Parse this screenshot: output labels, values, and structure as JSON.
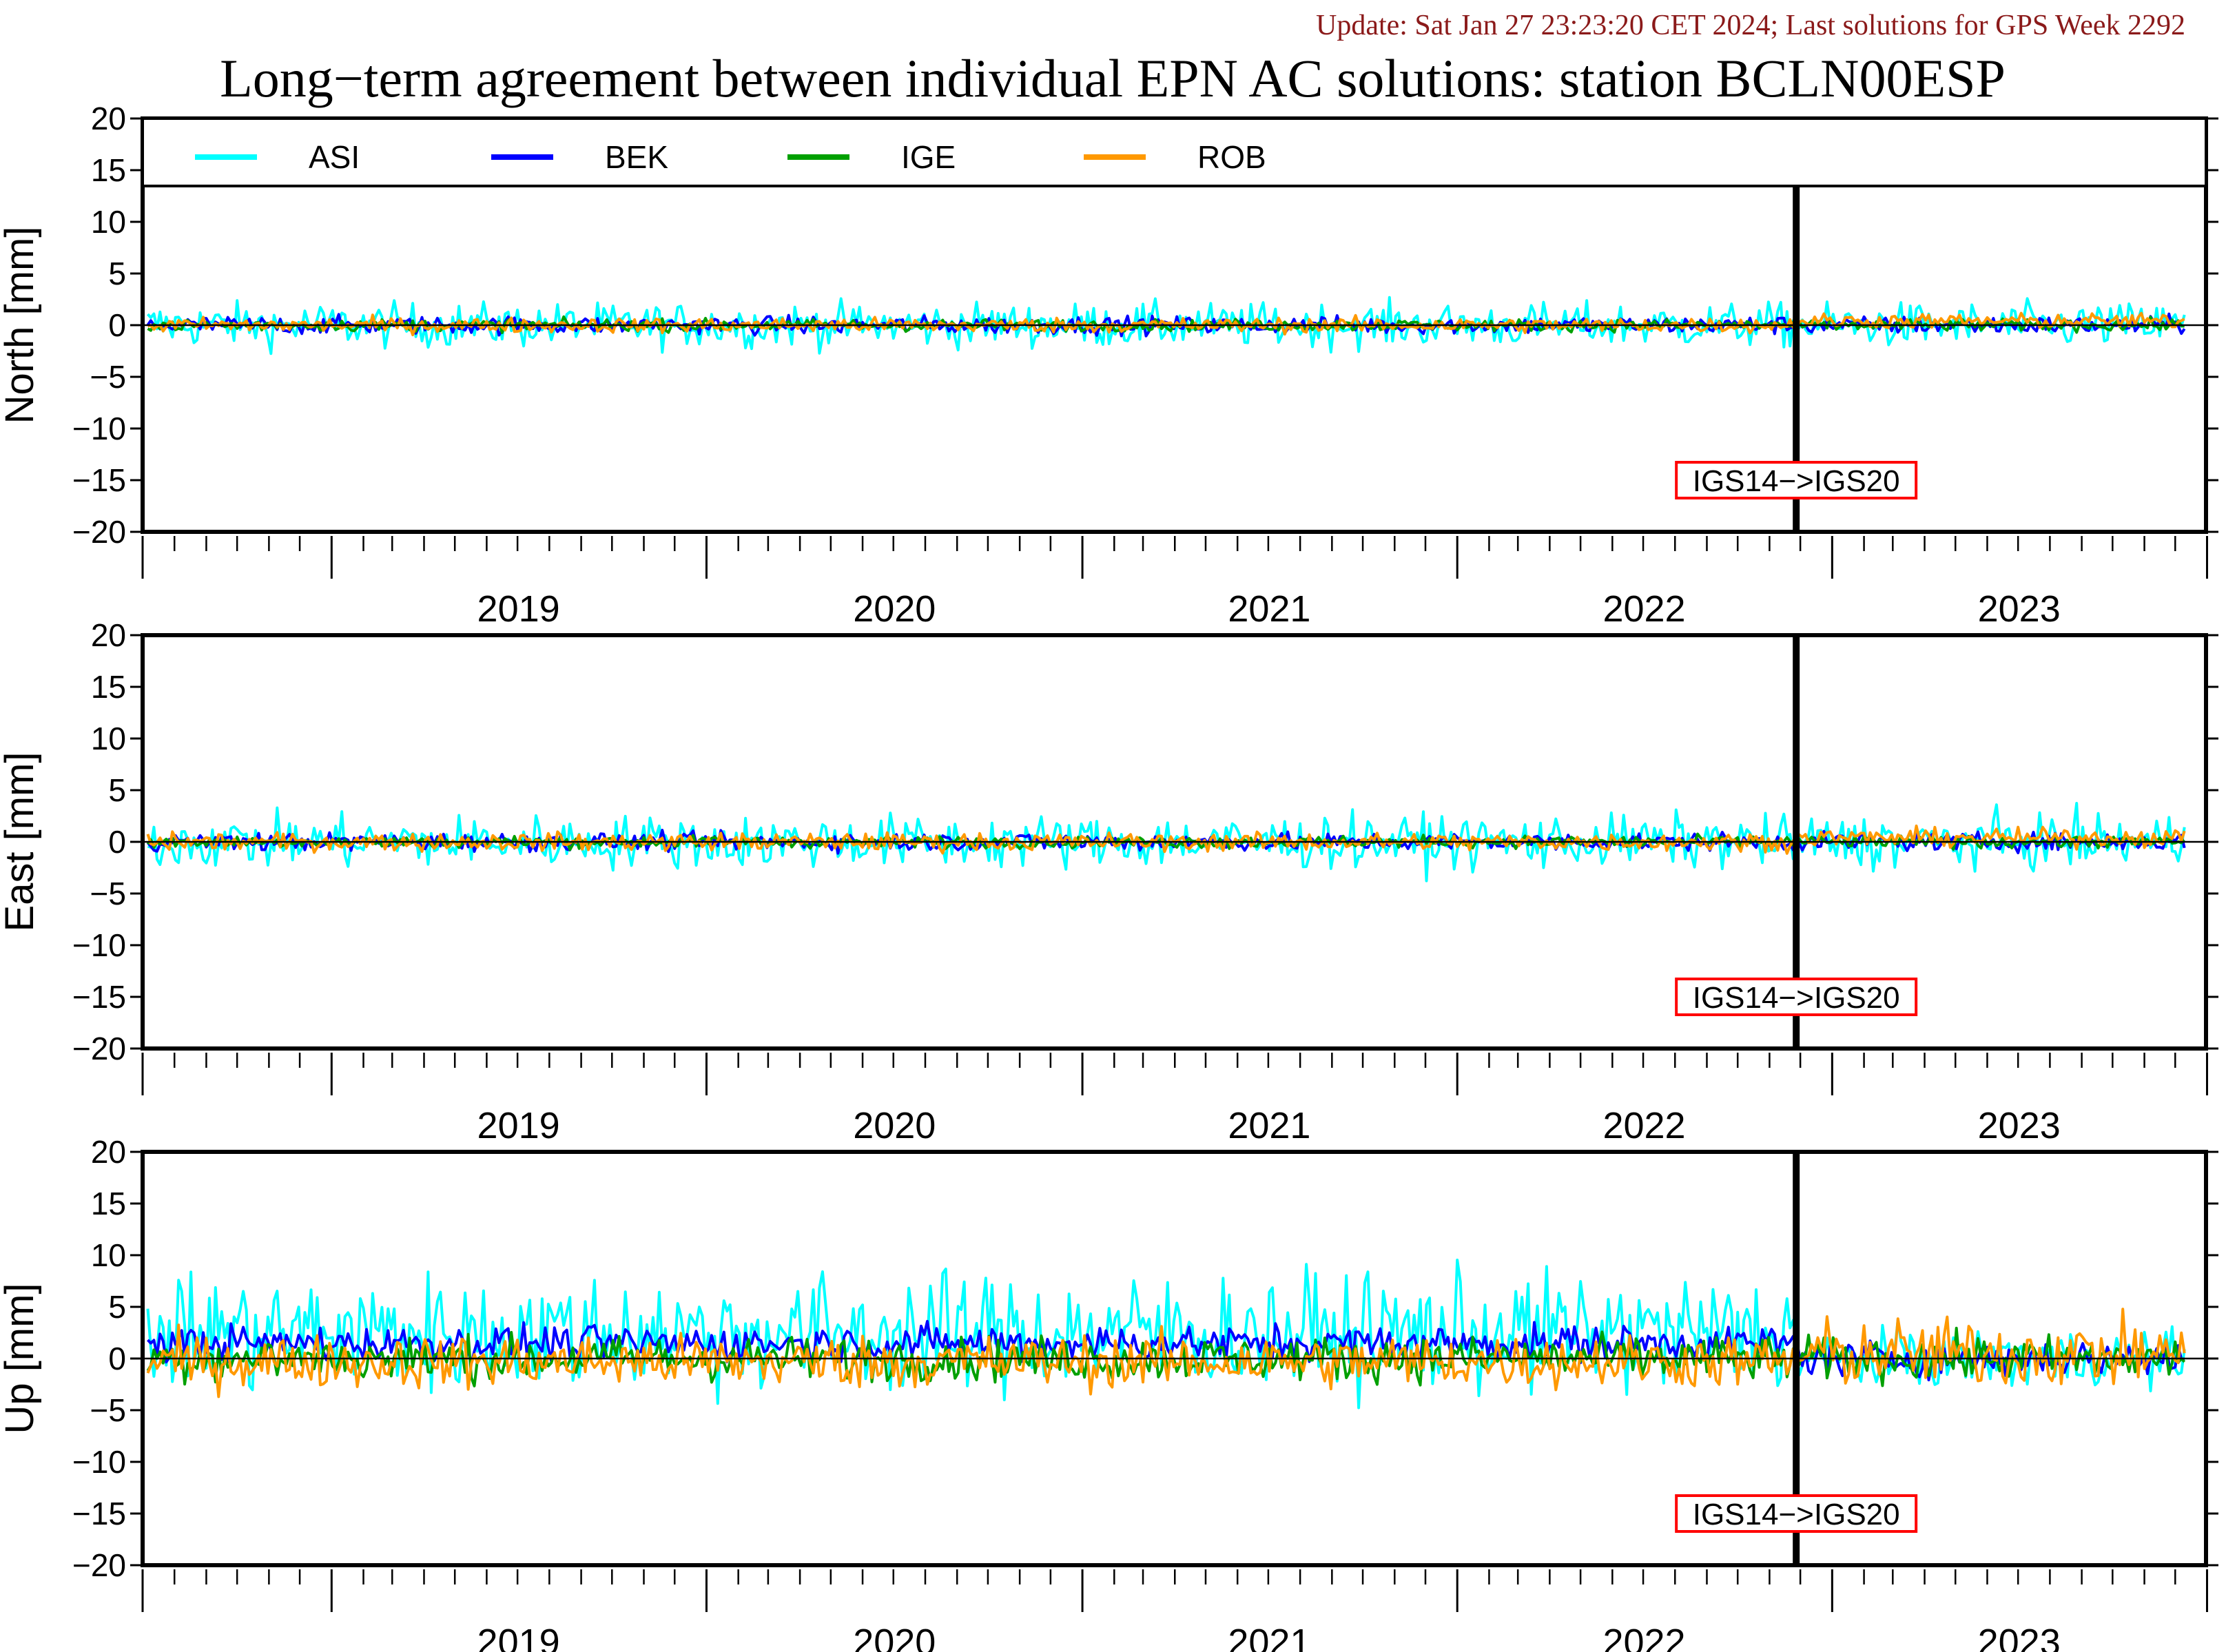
{
  "header": {
    "update": "Update: Sat Jan 27 23:23:20 CET 2024; Last solutions for GPS Week 2292"
  },
  "chart_data": {
    "type": "line",
    "title": "Long−term agreement between individual EPN AC solutions: station BCLN00ESP",
    "legend": {
      "placement": "top",
      "entries": [
        {
          "name": "ASI",
          "color": "#00ffff"
        },
        {
          "name": "BEK",
          "color": "#0000ff"
        },
        {
          "name": "IGE",
          "color": "#00a000"
        },
        {
          "name": "ROB",
          "color": "#ff9900"
        }
      ]
    },
    "x_range": [
      "2018-07-01",
      "2023-12-31"
    ],
    "year_labels": [
      "2019",
      "2020",
      "2021",
      "2022",
      "2023"
    ],
    "reference_line": {
      "x": "2022-11-27",
      "annotation": "IGS14−>IGS20",
      "annotation_color": "#ff0000"
    },
    "grid": false,
    "panels": [
      {
        "ylabel": "North [mm]",
        "ylim": [
          -20,
          20
        ],
        "yticks": [
          "20",
          "15",
          "10",
          "5",
          "0",
          "−5",
          "−10",
          "−15",
          "−20"
        ],
        "series_amplitude": {
          "ASI": 1.5,
          "BEK": 0.6,
          "IGE": 0.4,
          "ROB": 0.5
        }
      },
      {
        "ylabel": "East [mm]",
        "ylim": [
          -20,
          20
        ],
        "yticks": [
          "20",
          "15",
          "10",
          "5",
          "0",
          "−5",
          "−10",
          "−15",
          "−20"
        ],
        "series_amplitude": {
          "ASI": 1.8,
          "BEK": 0.6,
          "IGE": 0.4,
          "ROB": 0.6
        }
      },
      {
        "ylabel": "Up [mm]",
        "ylim": [
          -20,
          20
        ],
        "yticks": [
          "20",
          "15",
          "10",
          "5",
          "0",
          "−5",
          "−10",
          "−15",
          "−20"
        ],
        "series_amplitude": {
          "ASI": 4.0,
          "BEK": 1.2,
          "IGE": 1.5,
          "ROB": 1.8
        }
      }
    ]
  }
}
